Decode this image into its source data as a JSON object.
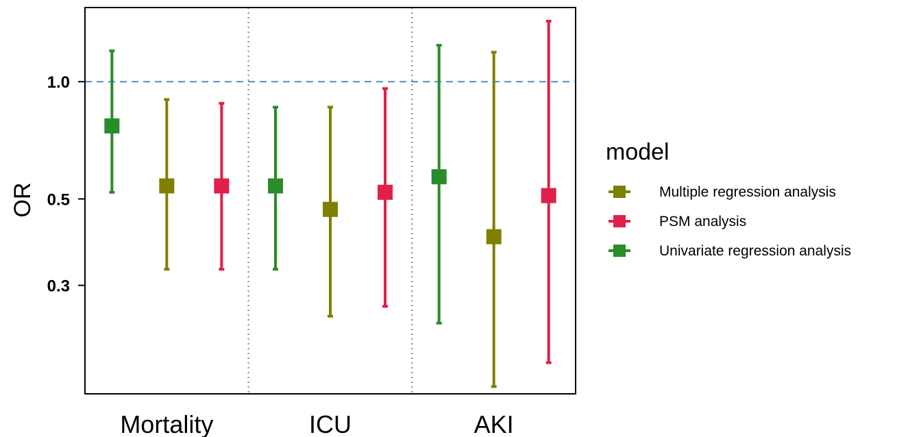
{
  "chart_data": {
    "type": "errorbar",
    "y_scale": "log",
    "ylabel": "OR",
    "y_ticks": [
      0.3,
      0.5,
      1.0
    ],
    "y_tick_labels": [
      "0.3",
      "0.5",
      "1.0"
    ],
    "ylim": [
      0.158,
      1.55
    ],
    "reference_line": {
      "y": 1.0,
      "style": "dashed",
      "color": "#4f8ec3"
    },
    "categories": [
      "Mortality",
      "ICU",
      "AKI"
    ],
    "legend": {
      "title": "model",
      "position": "right"
    },
    "series": [
      {
        "name": "Univariate regression analysis",
        "color": "#2a8c2a",
        "points": [
          {
            "category": "Mortality",
            "estimate": 0.77,
            "lower": 0.52,
            "upper": 1.2
          },
          {
            "category": "ICU",
            "estimate": 0.54,
            "lower": 0.33,
            "upper": 0.86
          },
          {
            "category": "AKI",
            "estimate": 0.57,
            "lower": 0.24,
            "upper": 1.24
          }
        ]
      },
      {
        "name": "Multiple regression analysis",
        "color": "#808000",
        "points": [
          {
            "category": "Mortality",
            "estimate": 0.54,
            "lower": 0.33,
            "upper": 0.9
          },
          {
            "category": "ICU",
            "estimate": 0.47,
            "lower": 0.25,
            "upper": 0.86
          },
          {
            "category": "AKI",
            "estimate": 0.4,
            "lower": 0.165,
            "upper": 1.19
          }
        ]
      },
      {
        "name": "PSM analysis",
        "color": "#e0204a",
        "points": [
          {
            "category": "Mortality",
            "estimate": 0.54,
            "lower": 0.33,
            "upper": 0.88
          },
          {
            "category": "ICU",
            "estimate": 0.52,
            "lower": 0.265,
            "upper": 0.96
          },
          {
            "category": "AKI",
            "estimate": 0.51,
            "lower": 0.19,
            "upper": 1.43
          }
        ]
      }
    ],
    "legend_order": [
      "Multiple regression analysis",
      "PSM analysis",
      "Univariate regression analysis"
    ],
    "grid": false,
    "category_separators": "dotted"
  }
}
